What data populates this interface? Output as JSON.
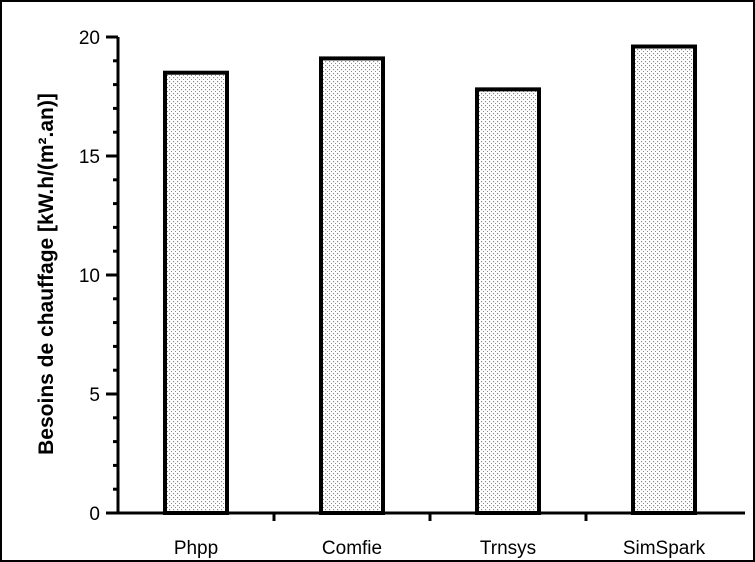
{
  "chart_data": {
    "type": "bar",
    "categories": [
      "Phpp",
      "Comfie",
      "Trnsys",
      "SimSpark"
    ],
    "values": [
      18.5,
      19.1,
      17.8,
      19.6
    ],
    "title": "",
    "xlabel": "",
    "ylabel": "Besoins de chauffage [kW.h/(m².an)]",
    "ylim": [
      0,
      20
    ],
    "yticks": [
      0,
      5,
      10,
      15,
      20
    ],
    "ytick_labels": [
      "0",
      "5",
      "10",
      "15",
      "20"
    ],
    "grid": false,
    "legend": "none",
    "bar_fill": "dotted light gray",
    "bar_edge_color": "#000000"
  }
}
